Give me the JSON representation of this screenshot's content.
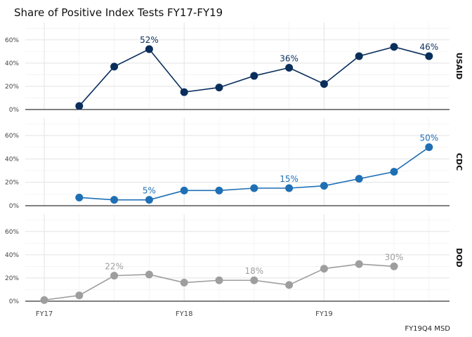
{
  "chart_data": {
    "type": "line",
    "title": "Share of Positive Index Tests FY17-FY19",
    "caption": "FY19Q4 MSD",
    "x_tick_labels": [
      "FY17",
      "FY18",
      "FY19"
    ],
    "y_tick_labels": [
      "0%",
      "20%",
      "40%",
      "60%"
    ],
    "ylim": [
      0,
      0.75
    ],
    "x_index": [
      1,
      2,
      3,
      4,
      5,
      6,
      7,
      8,
      9,
      10,
      11,
      12
    ],
    "x_tick_positions": [
      1,
      5,
      9
    ],
    "grid": true,
    "panels": [
      {
        "name": "USAID",
        "color": "#0a2e5c",
        "values": [
          null,
          0.03,
          0.37,
          0.52,
          0.15,
          0.19,
          0.29,
          0.36,
          0.22,
          0.46,
          0.54,
          0.46
        ],
        "labels": [
          {
            "index": 3,
            "text": "52%"
          },
          {
            "index": 7,
            "text": "36%"
          },
          {
            "index": 11,
            "text": "46%"
          }
        ]
      },
      {
        "name": "CDC",
        "color": "#1f6fb4",
        "values": [
          null,
          0.07,
          0.05,
          0.05,
          0.13,
          0.13,
          0.15,
          0.15,
          0.17,
          0.23,
          0.29,
          0.5
        ],
        "labels": [
          {
            "index": 3,
            "text": "5%"
          },
          {
            "index": 7,
            "text": "15%"
          },
          {
            "index": 11,
            "text": "50%"
          }
        ]
      },
      {
        "name": "DOD",
        "color": "#9e9e9e",
        "values": [
          0.01,
          0.05,
          0.22,
          0.23,
          0.16,
          0.18,
          0.18,
          0.14,
          0.28,
          0.32,
          0.3,
          null
        ],
        "labels": [
          {
            "index": 2,
            "text": "22%"
          },
          {
            "index": 6,
            "text": "18%"
          },
          {
            "index": 10,
            "text": "30%"
          }
        ]
      }
    ]
  }
}
